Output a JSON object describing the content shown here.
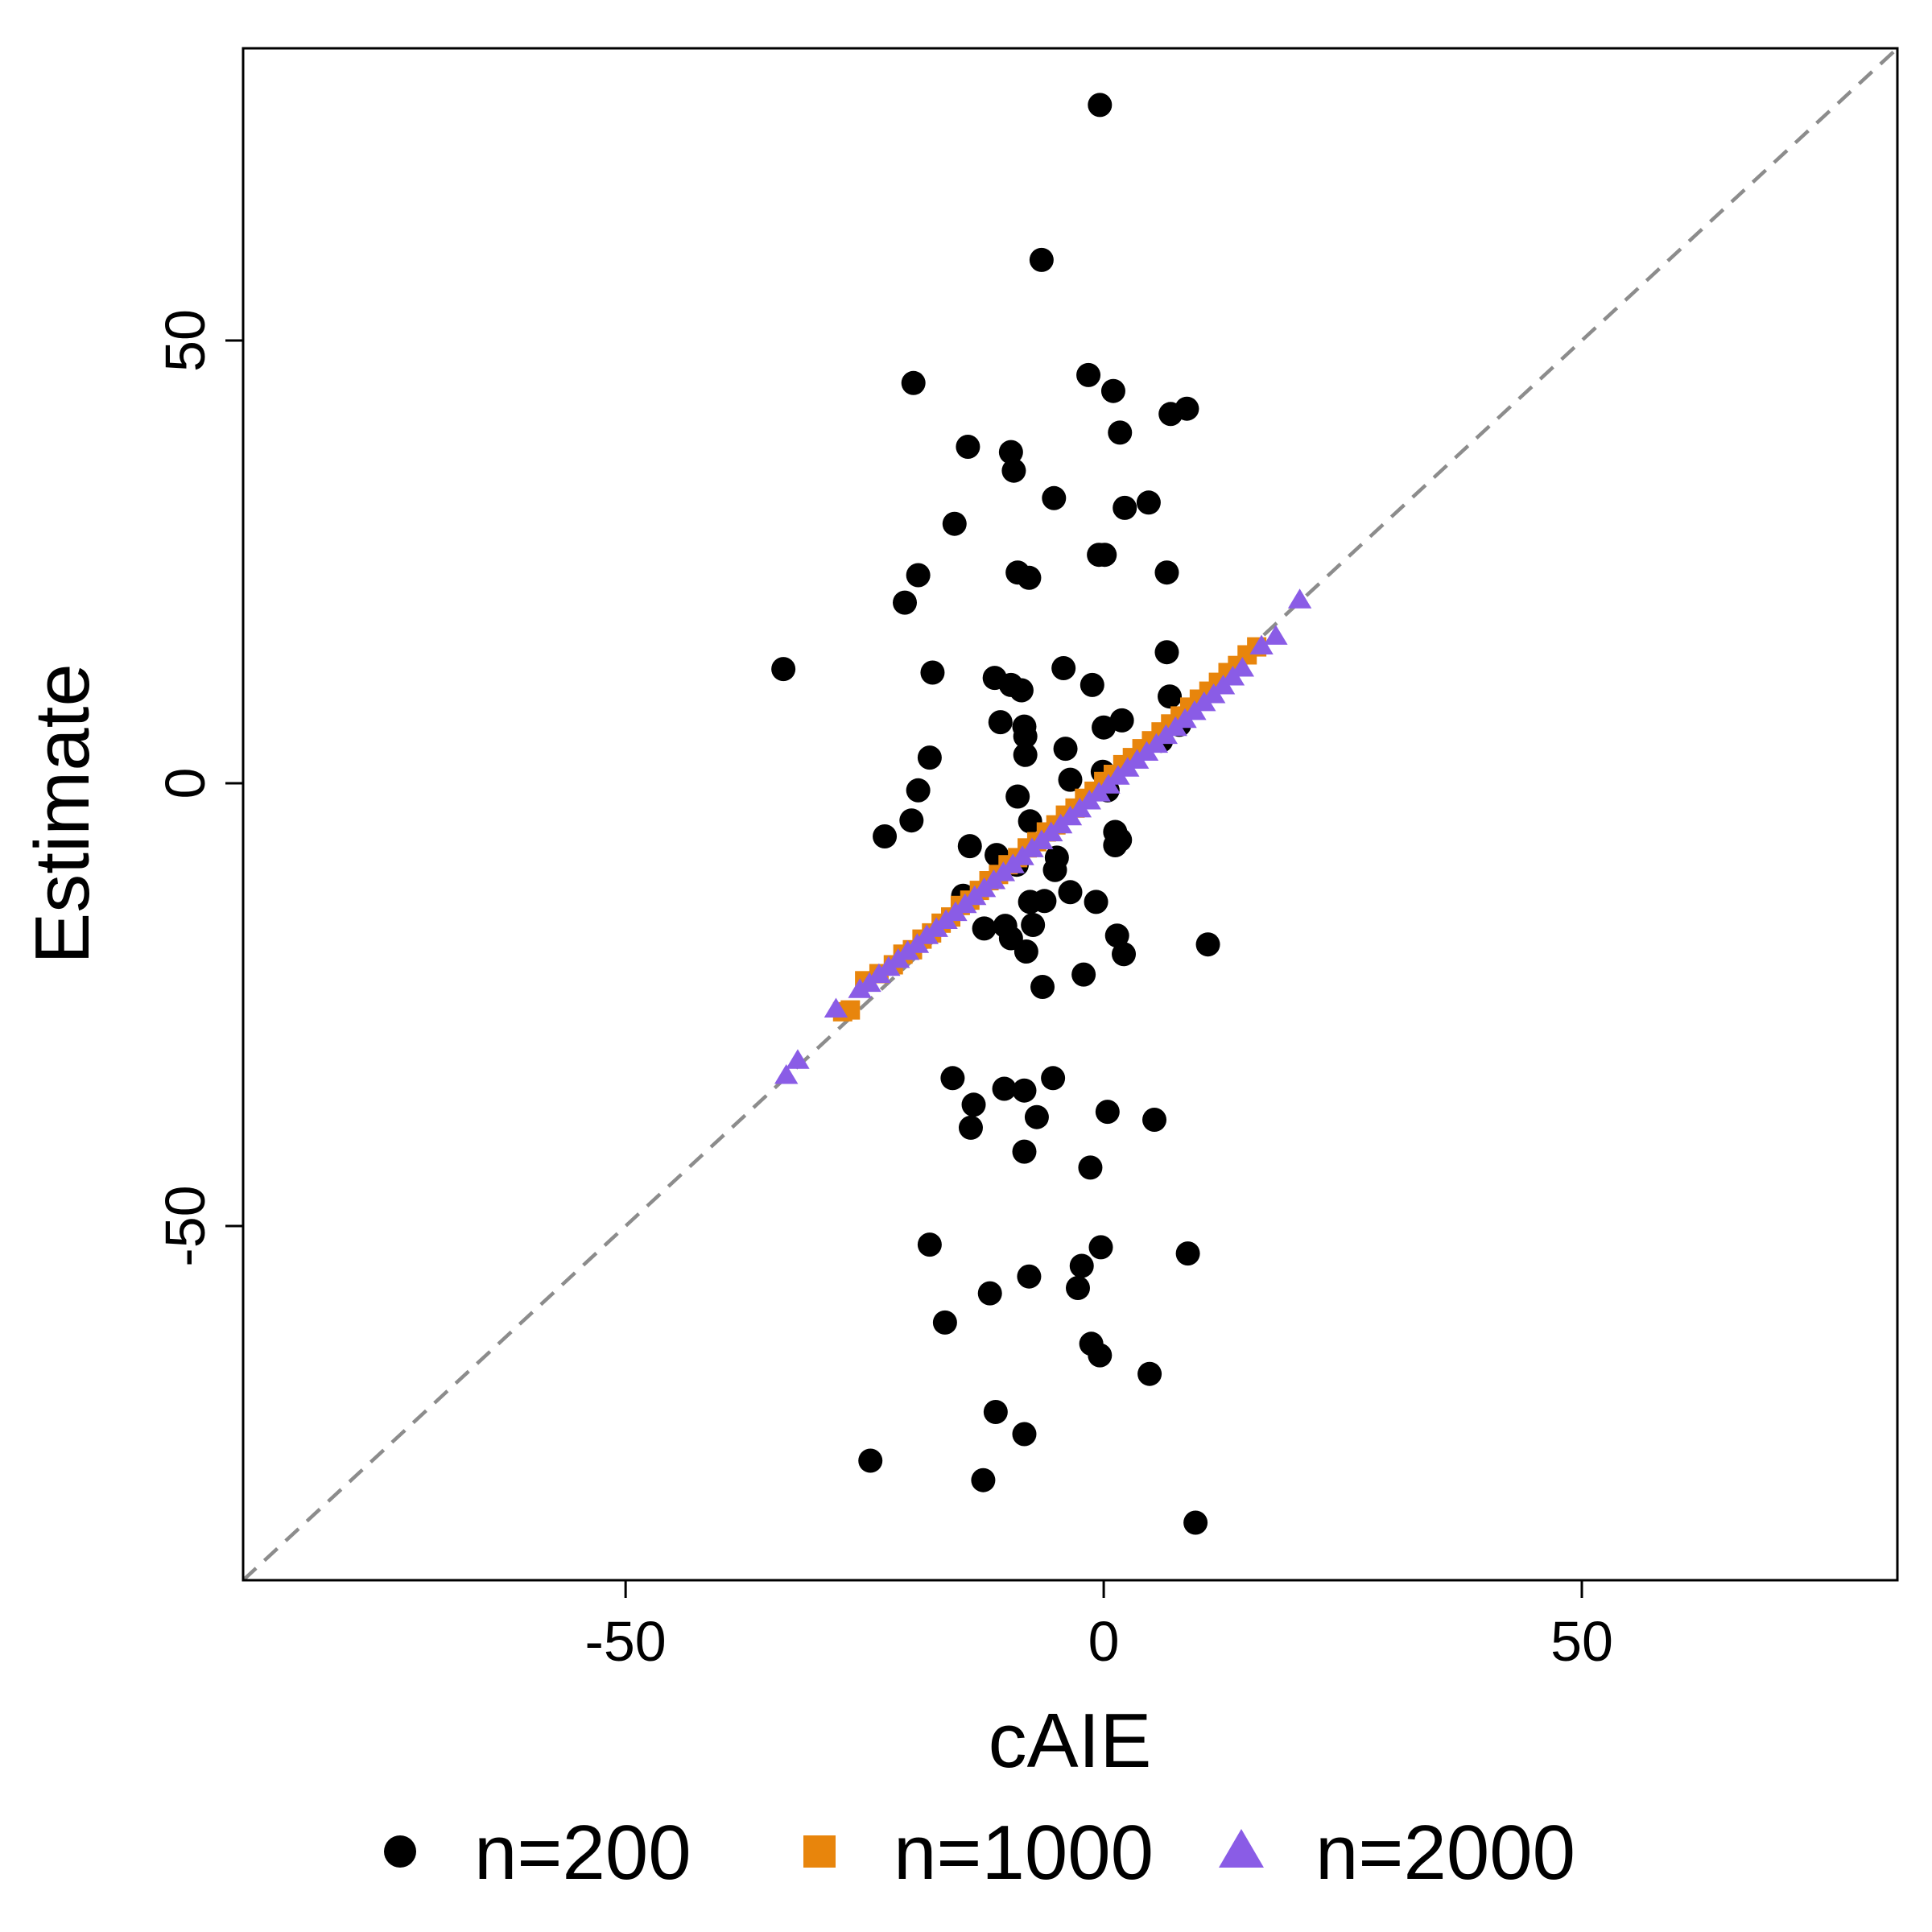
{
  "chart_data": {
    "type": "scatter",
    "x_label": "cAIE",
    "y_label": "Estimate",
    "xlim": [
      -90,
      83
    ],
    "ylim": [
      -90,
      83
    ],
    "xticks": [
      -50,
      0,
      50
    ],
    "yticks": [
      -50,
      0,
      50
    ],
    "reference_line": "y=x",
    "legend": "bottom",
    "series": [
      {
        "name": "n=200",
        "color": "#000000",
        "marker": "circle",
        "x": [
          -0.4,
          -6.5,
          -19.9,
          -1.6,
          1.0,
          7.0,
          8.7,
          1.7,
          -14.2,
          -9.7,
          -9.4,
          -5.2,
          2.2,
          4.7,
          -15.6,
          -0.5,
          0.1,
          -19.4,
          -9.0,
          -7.8,
          6.6,
          -20.8,
          -33.5,
          -17.9,
          -4.2,
          6.6,
          -11.4,
          -9.7,
          -8.6,
          -1.2,
          6.9,
          -10.8,
          -8.3,
          0.0,
          1.9,
          -8.2,
          -8.2,
          -4.0,
          -18.2,
          7.9,
          6.0,
          -3.5,
          -0.1,
          -19.4,
          -9.0,
          0.4,
          -20.1,
          -22.9,
          -7.7,
          -14.0,
          -11.2,
          -4.9,
          1.2,
          1.7,
          1.2,
          -5.1,
          -9.1,
          -3.5,
          -6.2,
          -0.8,
          -14.7,
          -12.5,
          -10.3,
          -7.7,
          -9.7,
          -7.4,
          -8.1,
          1.4,
          2.1,
          10.9,
          -2.1,
          -6.4,
          -15.8,
          -10.4,
          -8.3,
          -5.3,
          -13.6,
          -13.9,
          -7.0,
          0.4,
          5.3,
          -8.3,
          -1.4,
          -18.2,
          -0.3,
          8.8,
          -2.3,
          -7.8,
          -2.7,
          -11.9,
          -16.6,
          -1.3,
          -0.4,
          4.8,
          -11.3,
          -8.3,
          -24.4,
          -12.6,
          9.6
        ],
        "y": [
          76.6,
          59.1,
          45.2,
          46.1,
          44.3,
          41.7,
          42.3,
          39.6,
          38.0,
          37.4,
          35.3,
          32.2,
          31.1,
          31.7,
          29.3,
          25.8,
          25.8,
          23.5,
          23.8,
          23.2,
          23.8,
          20.4,
          12.9,
          12.5,
          13.0,
          14.8,
          11.9,
          11.1,
          10.5,
          11.1,
          9.8,
          6.9,
          6.4,
          6.3,
          7.1,
          5.3,
          3.2,
          3.9,
          2.9,
          6.6,
          4.8,
          0.4,
          1.3,
          -0.8,
          -1.5,
          -0.8,
          -4.2,
          -6.0,
          -4.3,
          -7.1,
          -8.1,
          -8.4,
          -7.0,
          -6.4,
          -5.5,
          -9.8,
          -9.2,
          -12.3,
          -13.3,
          -13.4,
          -12.7,
          -16.4,
          -16.1,
          -13.4,
          -17.5,
          -16.0,
          -19.0,
          -17.2,
          -19.3,
          -18.2,
          -21.6,
          -23.0,
          -33.3,
          -34.5,
          -34.7,
          -33.3,
          -36.3,
          -38.9,
          -37.7,
          -37.1,
          -38.0,
          -41.6,
          -43.4,
          -52.1,
          -52.4,
          -53.1,
          -54.5,
          -55.7,
          -57.0,
          -57.6,
          -60.9,
          -63.3,
          -64.6,
          -66.7,
          -71.0,
          -73.5,
          -76.5,
          -78.7,
          -83.5
        ]
      },
      {
        "name": "n=1000",
        "color": "#e8850c",
        "marker": "square",
        "x": [
          -27.3,
          -26.5,
          -25,
          -23.5,
          -22,
          -21,
          -20,
          -19,
          -18,
          -17,
          -16,
          -15,
          -14,
          -13,
          -12,
          -11,
          -10,
          -9,
          -8,
          -7,
          -6,
          -5,
          -4,
          -3,
          -2,
          -1,
          0,
          1,
          2,
          3,
          4,
          5,
          6,
          7,
          8,
          9,
          10,
          11,
          12,
          13,
          14,
          15,
          16
        ],
        "y": [
          -25.8,
          -25.6,
          -22.3,
          -21.5,
          -20.5,
          -19.3,
          -18.8,
          -17.6,
          -16.9,
          -15.8,
          -15.1,
          -13.8,
          -13.2,
          -12.1,
          -11.0,
          -10.3,
          -9.2,
          -8.4,
          -7.3,
          -6.6,
          -5.5,
          -4.7,
          -3.6,
          -2.8,
          -1.7,
          -0.9,
          0.2,
          1.0,
          2.1,
          2.9,
          3.9,
          4.8,
          5.8,
          6.7,
          7.6,
          8.6,
          9.5,
          10.4,
          11.4,
          12.5,
          13.3,
          14.5,
          15.4
        ]
      },
      {
        "name": "n=2000",
        "color": "#8a5ce6",
        "marker": "triangle",
        "x": [
          -33.2,
          -32,
          -28,
          -25.5,
          -24.5,
          -23.5,
          -22.5,
          -21.5,
          -20.5,
          -19.5,
          -18.5,
          -17.5,
          -16.5,
          -15.5,
          -14.5,
          -13.5,
          -12.5,
          -11.5,
          -10.5,
          -9.5,
          -8.5,
          -7.5,
          -6.5,
          -5.5,
          -4.5,
          -3.5,
          -2.5,
          -1.5,
          -0.5,
          0.5,
          1.5,
          2.5,
          3.5,
          4.5,
          5.5,
          6.5,
          7.5,
          8.5,
          9.5,
          10.5,
          11.5,
          12.5,
          13.5,
          14.5,
          16.5,
          18,
          20.5
        ],
        "y": [
          -33.0,
          -31.3,
          -25.5,
          -23.3,
          -22.6,
          -21.6,
          -20.8,
          -19.9,
          -19.0,
          -18.2,
          -17.2,
          -16.4,
          -15.5,
          -14.6,
          -13.7,
          -12.8,
          -11.9,
          -11.0,
          -10.1,
          -9.2,
          -8.3,
          -7.4,
          -6.5,
          -5.6,
          -4.7,
          -3.8,
          -2.9,
          -2.0,
          -1.1,
          -0.2,
          0.8,
          1.7,
          2.6,
          3.5,
          4.4,
          5.4,
          6.3,
          7.2,
          8.1,
          9.1,
          10.0,
          11.0,
          12.0,
          13.0,
          15.5,
          16.6,
          20.7
        ]
      }
    ]
  }
}
